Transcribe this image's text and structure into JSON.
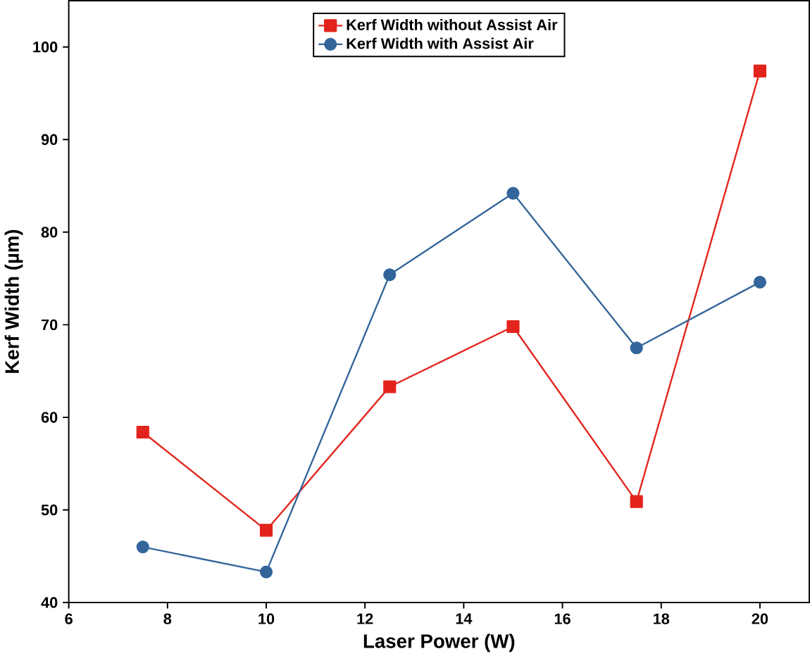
{
  "chart_data": {
    "type": "line",
    "xlabel": "Laser Power (W)",
    "ylabel": "Kerf Width (µm)",
    "x": [
      7.5,
      10,
      12.5,
      15,
      17.5,
      20
    ],
    "xlim": [
      6,
      21
    ],
    "ylim": [
      40,
      105
    ],
    "xticks": [
      6,
      8,
      10,
      12,
      14,
      16,
      18,
      20
    ],
    "yticks": [
      40,
      50,
      60,
      70,
      80,
      90,
      100
    ],
    "legend": "top",
    "grid": false,
    "line_style": "solid",
    "series": [
      {
        "name": "Kerf Width without Assist Air",
        "color": "#e3241d",
        "marker": "square",
        "values": [
          58.4,
          47.8,
          63.3,
          69.8,
          50.9,
          97.4
        ]
      },
      {
        "name": "Kerf Width with Assist Air",
        "color": "#33659b",
        "marker": "circle",
        "values": [
          46.0,
          43.3,
          75.4,
          84.2,
          67.5,
          74.6
        ]
      }
    ]
  }
}
